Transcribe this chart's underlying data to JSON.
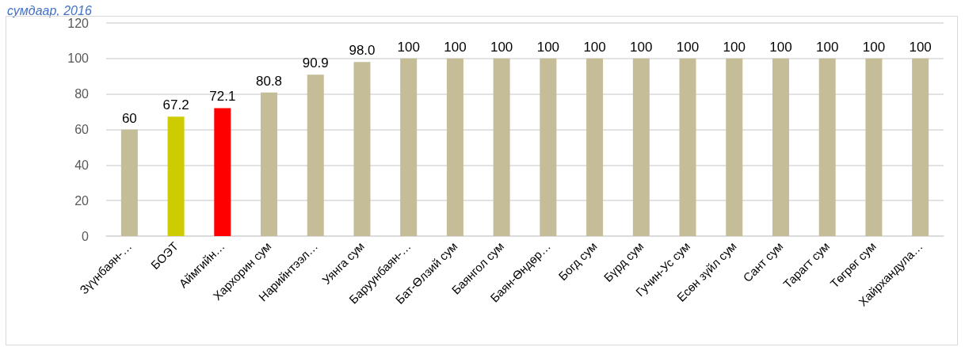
{
  "chart_data": {
    "type": "bar",
    "title": "сумдаар, 2016",
    "categories": [
      "Зүүнбаян-…",
      "БОЭТ",
      "Аймгийн…",
      "Хархорин сум",
      "Нарийнтээл…",
      "Уянга сум",
      "Баруунбаян-…",
      "Бат-Өлзий сум",
      "Баянгол сум",
      "Баян-Өндөр…",
      "Богд сум",
      "Бүрд сум",
      "Гучин-Ус сум",
      "Есөн зүйл сум",
      "Сант сум",
      "Тарагт сум",
      "Төгрөг сум",
      "Хайрхандула…"
    ],
    "values": [
      60,
      67.2,
      72.1,
      80.8,
      90.9,
      98.0,
      100,
      100,
      100,
      100,
      100,
      100,
      100,
      100,
      100,
      100,
      100,
      100
    ],
    "colors": [
      "#c4bd97",
      "#cccc00",
      "#ff0000",
      "#c4bd97",
      "#c4bd97",
      "#c4bd97",
      "#c4bd97",
      "#c4bd97",
      "#c4bd97",
      "#c4bd97",
      "#c4bd97",
      "#c4bd97",
      "#c4bd97",
      "#c4bd97",
      "#c4bd97",
      "#c4bd97",
      "#c4bd97",
      "#c4bd97"
    ],
    "value_labels": [
      "60",
      "67.2",
      "72.1",
      "80.8",
      "90.9",
      "98.0",
      "100",
      "100",
      "100",
      "100",
      "100",
      "100",
      "100",
      "100",
      "100",
      "100",
      "100",
      "100"
    ],
    "ylim": [
      0,
      120
    ],
    "yticks": [
      0,
      20,
      40,
      60,
      80,
      100,
      120
    ],
    "grid": "y"
  }
}
